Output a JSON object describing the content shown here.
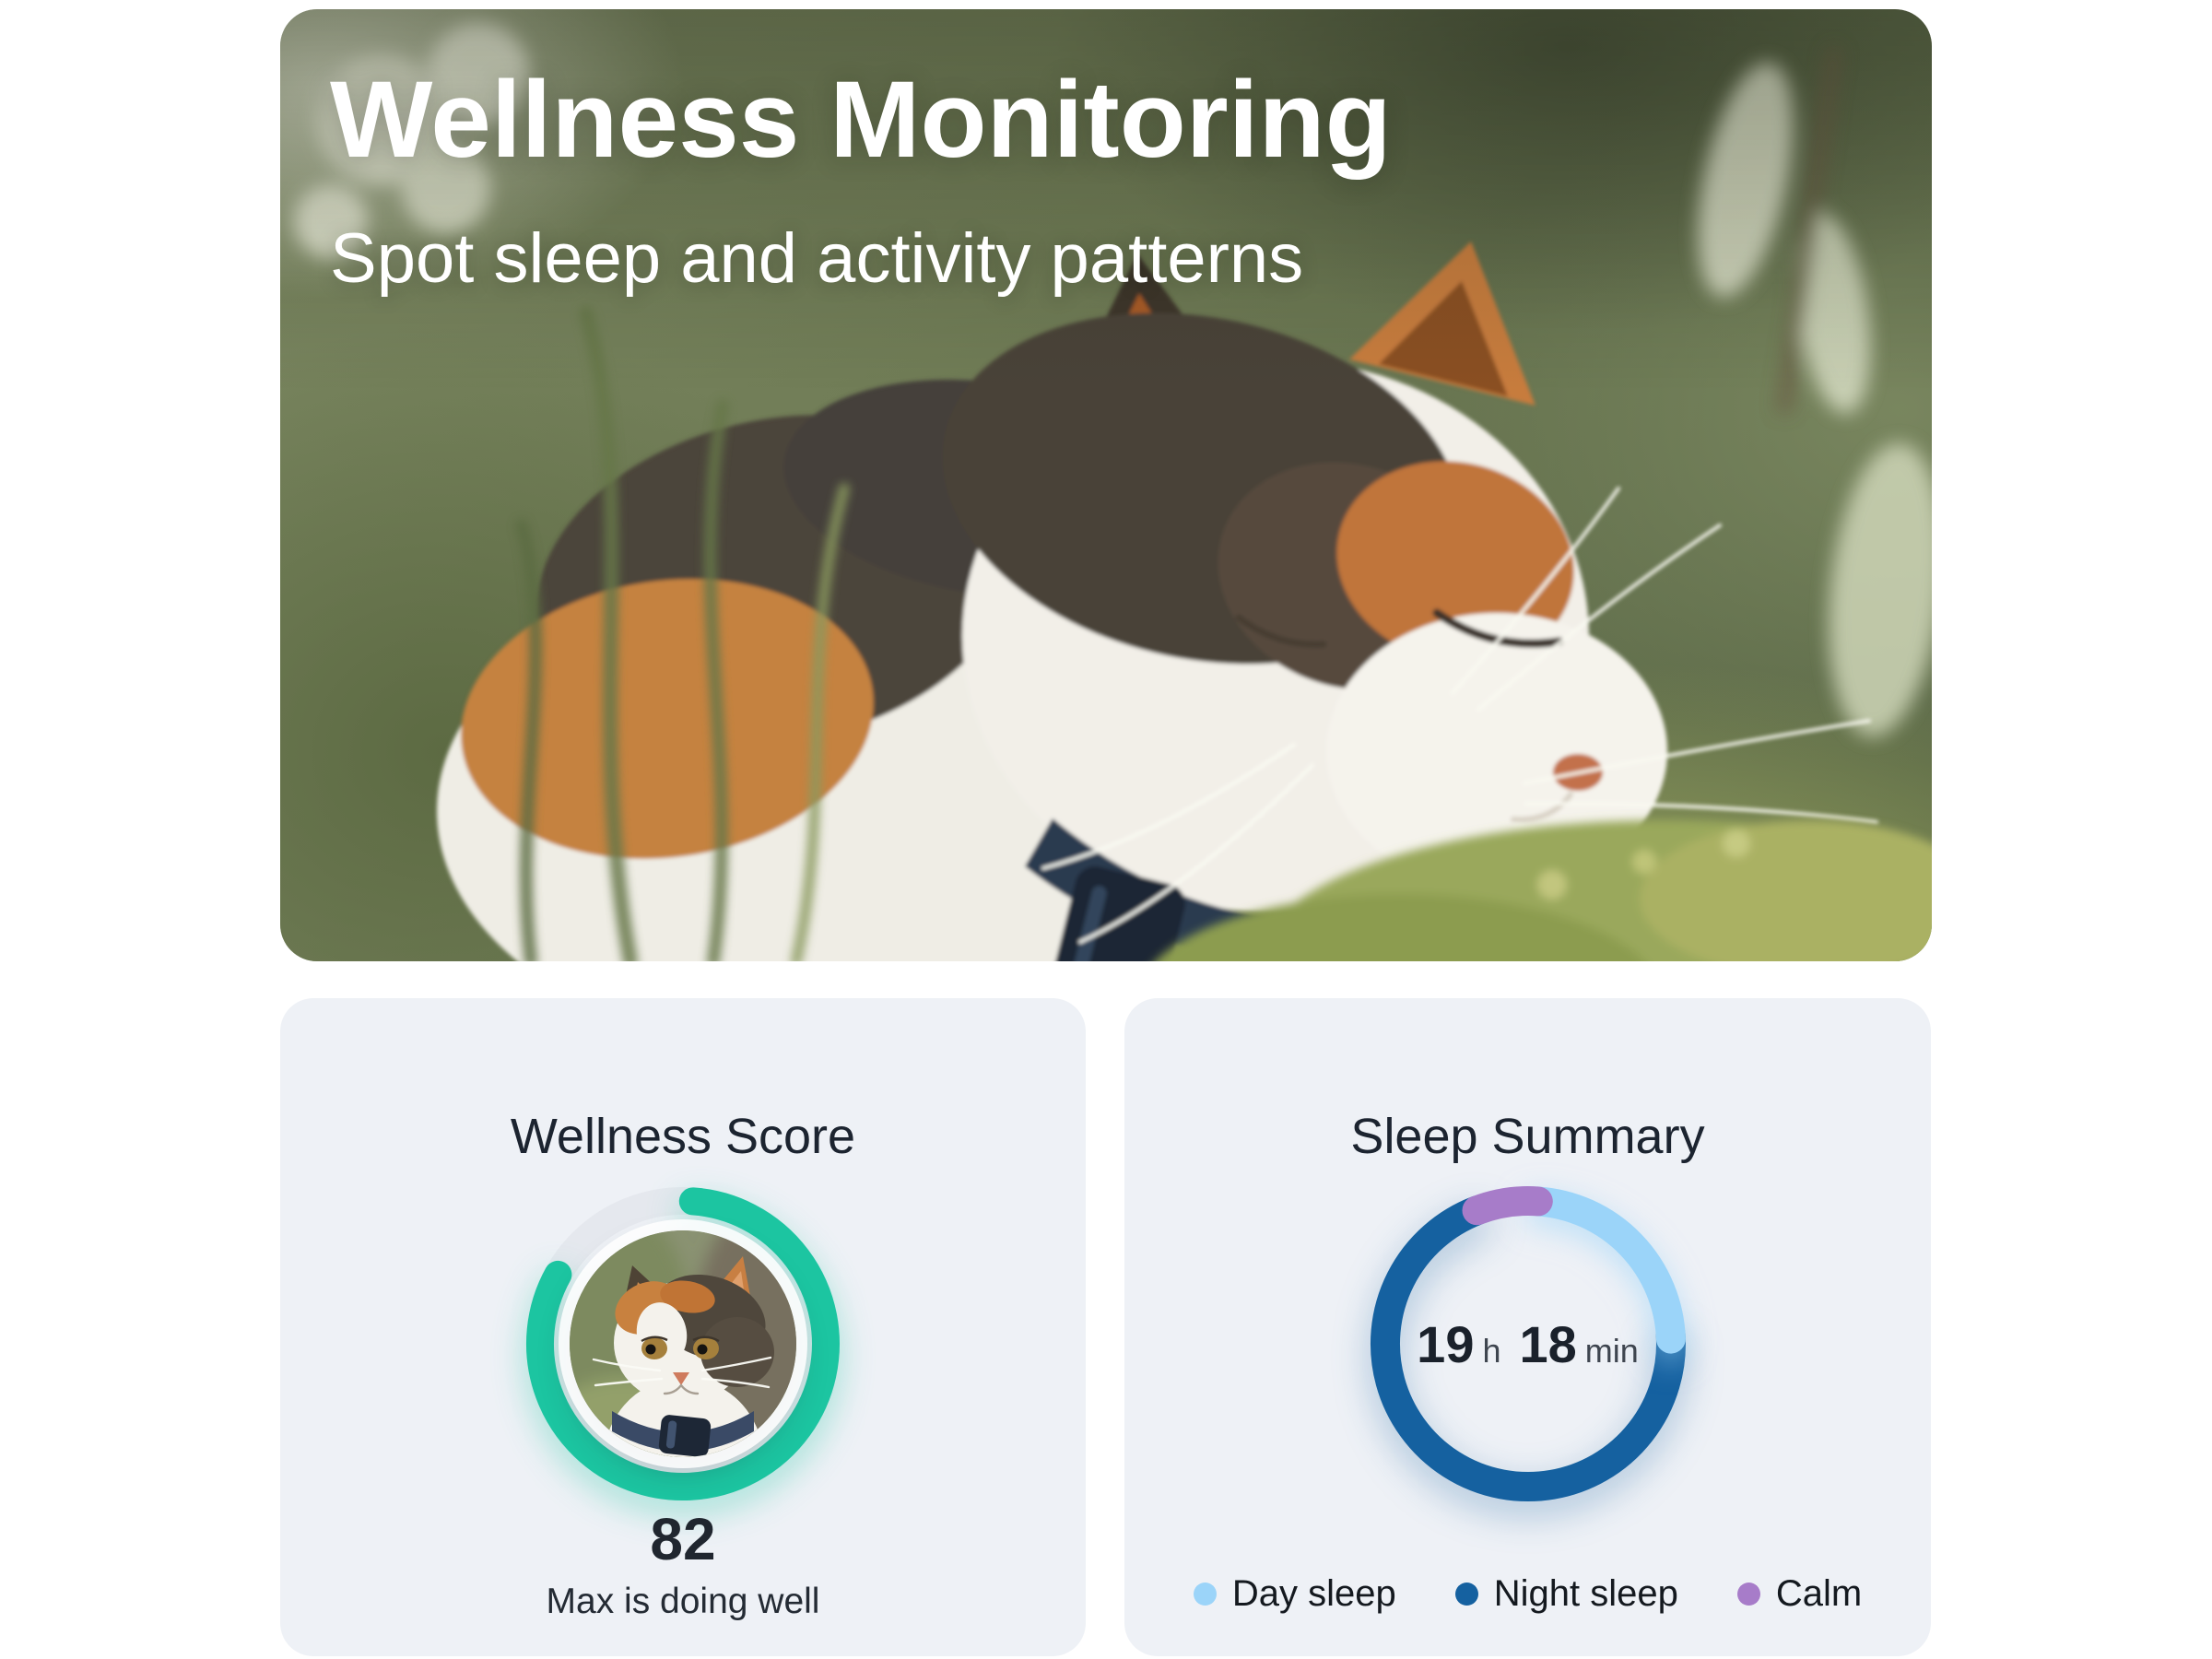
{
  "hero": {
    "title": "Wellness Monitoring",
    "subtitle": "Spot sleep and activity patterns"
  },
  "wellness": {
    "title": "Wellness Score",
    "score": "82",
    "status_text": "Max is doing well"
  },
  "sleep": {
    "title": "Sleep Summary",
    "duration": {
      "hours": "19",
      "hours_unit": "h",
      "minutes": "18",
      "minutes_unit": "min"
    },
    "legend": [
      {
        "label": "Day sleep",
        "color": "#9BD4F9"
      },
      {
        "label": "Night sleep",
        "color": "#1561A0"
      },
      {
        "label": "Calm",
        "color": "#A77CC9"
      }
    ]
  },
  "colors": {
    "accent_green": "#1CC5A1",
    "ring_track": "#E5E8EE",
    "night_blue": "#1561A0",
    "day_blue": "#9BD4F9",
    "calm_purple": "#A77CC9",
    "card_background": "#EEF1F6",
    "text_dark": "#1C2430"
  },
  "chart_data": [
    {
      "type": "donut",
      "title": "Wellness Score",
      "value": 82,
      "max": 100,
      "center_label": "82",
      "stroke_width": 30,
      "track_color": "#E5E8EE",
      "segments": [
        {
          "label": "score",
          "color": "#1CC5A1",
          "start_deg": 4,
          "end_deg": 299
        }
      ]
    },
    {
      "type": "donut",
      "title": "Sleep Summary",
      "center_label": "19 h 18 min",
      "stroke_width": 32,
      "legend_position": "bottom",
      "segments": [
        {
          "label": "Night sleep",
          "color": "#1561A0",
          "start_deg": 86,
          "end_deg": 339
        },
        {
          "label": "Day sleep",
          "color": "#9BD4F9",
          "start_deg": 4,
          "end_deg": 88
        },
        {
          "label": "Calm",
          "color": "#A77CC9",
          "start_deg": 339,
          "end_deg": 364
        }
      ]
    }
  ]
}
